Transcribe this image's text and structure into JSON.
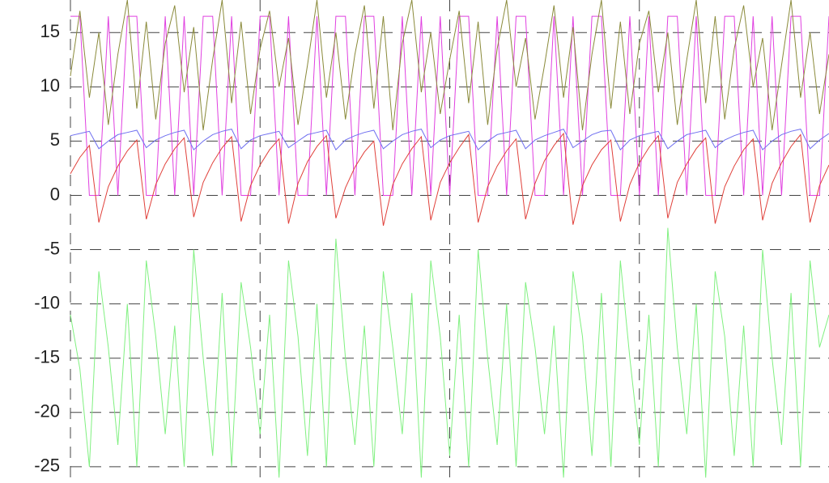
{
  "chart_data": {
    "type": "line",
    "x": [
      0,
      0.05,
      0.1,
      0.15,
      0.2,
      0.25,
      0.3,
      0.35,
      0.4,
      0.45,
      0.5,
      0.55,
      0.6,
      0.65,
      0.7,
      0.75,
      0.8,
      0.85,
      0.9,
      0.95,
      1,
      1.05,
      1.1,
      1.15,
      1.2,
      1.25,
      1.3,
      1.35,
      1.4,
      1.45,
      1.5,
      1.55,
      1.6,
      1.65,
      1.7,
      1.75,
      1.8,
      1.85,
      1.9,
      1.95,
      2,
      2.05,
      2.1,
      2.15,
      2.2,
      2.25,
      2.3,
      2.35,
      2.4,
      2.45,
      2.5,
      2.55,
      2.6,
      2.65,
      2.7,
      2.75,
      2.8,
      2.85,
      2.9,
      2.95,
      3,
      3.05,
      3.1,
      3.15,
      3.2,
      3.25,
      3.3,
      3.35,
      3.4,
      3.45,
      3.5,
      3.55,
      3.6,
      3.65,
      3.7,
      3.75,
      3.8,
      3.85,
      3.9,
      3.95,
      4
    ],
    "series": [
      {
        "color": "#e040e0",
        "values": [
          16.5,
          16.5,
          0,
          0,
          16.5,
          0,
          16.5,
          16.5,
          0,
          0,
          16.5,
          0,
          16.5,
          0,
          16.5,
          16.5,
          0,
          16.5,
          0,
          0,
          16.5,
          16.5,
          0,
          16.5,
          0,
          0,
          16.5,
          0,
          16.5,
          16.5,
          0,
          16.5,
          16.5,
          0,
          0,
          16.5,
          0,
          16.5,
          0,
          16.5,
          0,
          16.5,
          16.5,
          0,
          0,
          16.5,
          0,
          16.5,
          16.5,
          0,
          0,
          16.5,
          0,
          16.5,
          0,
          16.5,
          16.5,
          0,
          0,
          16.5,
          0,
          16.5,
          0,
          16.5,
          16.5,
          0,
          16.5,
          0,
          0,
          16.5,
          16.5,
          0,
          16.5,
          0,
          16.5,
          0,
          16.5,
          16.5,
          0,
          0,
          16.5
        ]
      },
      {
        "color": "#8a8a3a",
        "values": [
          11,
          17,
          9,
          15,
          6.5,
          13,
          18,
          8,
          16,
          7,
          14,
          17.5,
          9.5,
          15.5,
          6,
          12.5,
          18,
          8.5,
          16,
          7.5,
          13.5,
          17,
          10,
          14.5,
          6.5,
          12,
          18,
          9,
          15,
          7,
          13,
          17.5,
          8,
          16.5,
          6,
          14,
          18,
          9.5,
          15,
          7.5,
          12.5,
          17,
          8.5,
          16,
          6.5,
          13.5,
          18,
          10,
          14.5,
          7,
          12,
          17.5,
          9,
          15.5,
          6,
          13,
          18,
          8,
          16,
          7.5,
          14,
          17,
          9.5,
          15,
          6.5,
          12.5,
          18,
          8.5,
          16.5,
          7,
          13.5,
          17.5,
          10,
          14.5,
          6,
          12,
          18,
          9,
          15,
          7.5,
          13
        ]
      },
      {
        "color": "#6f6ff0",
        "values": [
          5.5,
          5.7,
          5.9,
          4.3,
          5,
          5.6,
          5.8,
          6,
          4.4,
          5.1,
          5.5,
          5.8,
          6,
          4.2,
          5,
          5.6,
          5.9,
          6.1,
          4.3,
          5.1,
          5.5,
          5.7,
          5.9,
          4.4,
          5,
          5.6,
          5.8,
          6,
          4.2,
          5.1,
          5.5,
          5.8,
          6,
          4.3,
          5,
          5.6,
          5.9,
          6.1,
          4.4,
          5.1,
          5.5,
          5.7,
          5.9,
          4.2,
          5,
          5.6,
          5.8,
          6,
          4.3,
          5.1,
          5.5,
          5.8,
          6.1,
          4.4,
          5,
          5.6,
          5.9,
          6,
          4.2,
          5.1,
          5.5,
          5.7,
          5.9,
          4.3,
          5,
          5.6,
          5.8,
          6,
          4.4,
          5.1,
          5.5,
          5.8,
          6,
          4.2,
          5,
          5.6,
          5.9,
          6.1,
          4.3,
          5.1,
          5.7
        ]
      },
      {
        "color": "#e0403a",
        "values": [
          2,
          3.5,
          4.6,
          -2.5,
          0.8,
          2.7,
          4.1,
          5.1,
          -2.2,
          1,
          2.9,
          4.3,
          5.3,
          -2,
          1.2,
          3,
          4.4,
          5.4,
          -2.4,
          0.9,
          2.8,
          4.2,
          5.2,
          -2.6,
          1.1,
          3.1,
          4.5,
          5.5,
          -2.1,
          0.7,
          2.6,
          4,
          5,
          -2.8,
          1,
          2.9,
          4.3,
          5.4,
          -2.3,
          1.2,
          3,
          4.4,
          5.6,
          -2.5,
          0.8,
          2.7,
          4.1,
          5.2,
          -2.2,
          1.1,
          3.2,
          4.6,
          5.7,
          -2.7,
          0.9,
          2.8,
          4.2,
          5.1,
          -2.4,
          1,
          3,
          4.4,
          5.5,
          -2.1,
          1.2,
          2.9,
          4.3,
          5.3,
          -2.6,
          0.8,
          2.7,
          4.2,
          5.2,
          -2.3,
          1.1,
          3,
          4.5,
          5.6,
          -2.5,
          0.9,
          2.8
        ]
      },
      {
        "color": "#80f080",
        "values": [
          -11,
          -16,
          -25,
          -7,
          -14,
          -23,
          -10,
          -25,
          -6,
          -13,
          -22,
          -12,
          -25,
          -5,
          -15,
          -24,
          -9,
          -25,
          -8,
          -14,
          -22,
          -11,
          -26,
          -6,
          -13,
          -24,
          -10,
          -25,
          -4,
          -15,
          -23,
          -12,
          -25,
          -7,
          -14,
          -22,
          -9,
          -26,
          -6,
          -13,
          -24,
          -11,
          -25,
          -5,
          -15,
          -23,
          -10,
          -25,
          -8,
          -14,
          -22,
          -12,
          -26,
          -7,
          -13,
          -24,
          -9,
          -25,
          -6,
          -15,
          -23,
          -11,
          -25,
          -3,
          -14,
          -22,
          -10,
          -26,
          -7,
          -13,
          -24,
          -12,
          -25,
          -5,
          -15,
          -23,
          -9,
          -25,
          -6,
          -14,
          -11
        ]
      }
    ],
    "xlim": [
      0,
      4
    ],
    "xticks": [
      0,
      1,
      2,
      3
    ],
    "ylim": [
      -26.5,
      18
    ],
    "yticks": [
      15,
      10,
      5,
      0,
      -5,
      -10,
      -15,
      -20,
      -25
    ],
    "grid": true
  }
}
